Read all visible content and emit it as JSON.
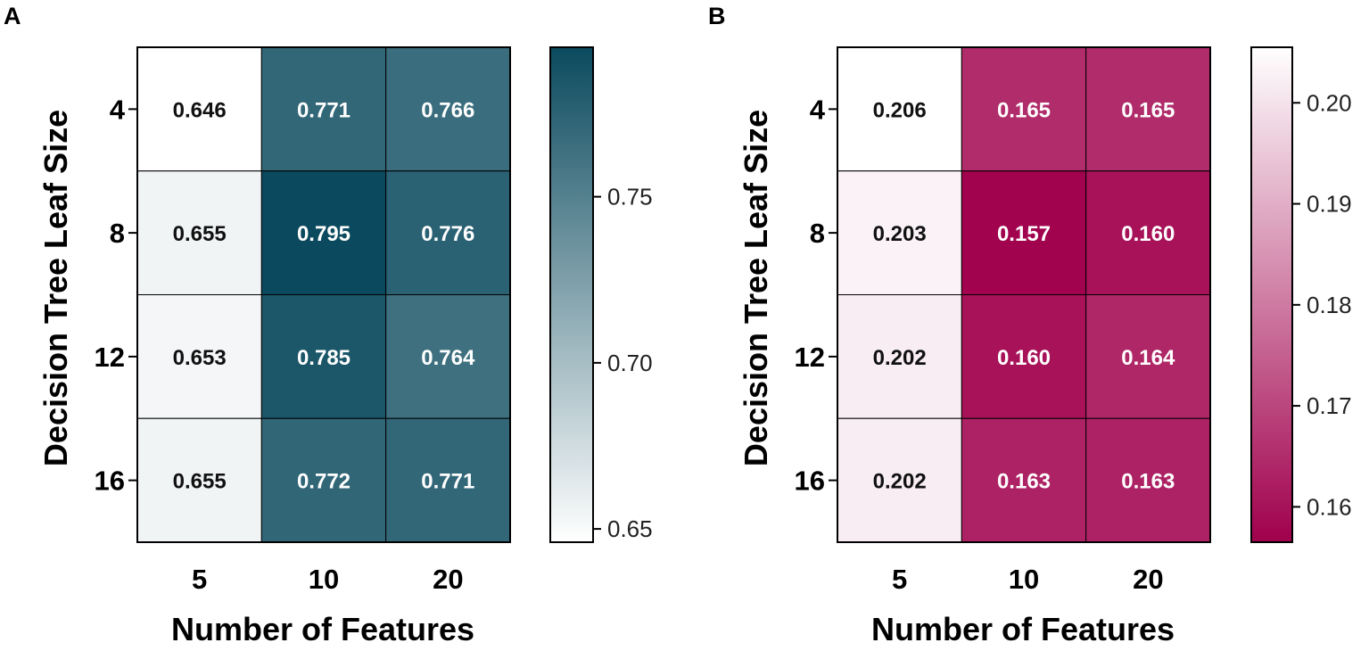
{
  "chart_data": [
    {
      "type": "heatmap",
      "panel": "A",
      "xlabel": "Number of  Features",
      "ylabel": "Decision Tree Leaf Size",
      "x_categories": [
        "5",
        "10",
        "20"
      ],
      "y_categories": [
        "4",
        "8",
        "12",
        "16"
      ],
      "values": [
        [
          0.646,
          0.771,
          0.766
        ],
        [
          0.655,
          0.795,
          0.776
        ],
        [
          0.653,
          0.785,
          0.764
        ],
        [
          0.655,
          0.772,
          0.771
        ]
      ],
      "value_labels": [
        [
          "0.646",
          "0.771",
          "0.766"
        ],
        [
          "0.655",
          "0.795",
          "0.776"
        ],
        [
          "0.653",
          "0.785",
          "0.764"
        ],
        [
          "0.655",
          "0.772",
          "0.771"
        ]
      ],
      "colorbar": {
        "range": [
          0.646,
          0.795
        ],
        "low_color": "#ffffff",
        "high_color": "#0b4a5e",
        "ticks": [
          0.65,
          0.7,
          0.75
        ],
        "tick_labels": [
          "0.65",
          "0.70",
          "0.75"
        ]
      }
    },
    {
      "type": "heatmap",
      "panel": "B",
      "xlabel": "Number of  Features",
      "ylabel": "Decision Tree Leaf Size",
      "x_categories": [
        "5",
        "10",
        "20"
      ],
      "y_categories": [
        "4",
        "8",
        "12",
        "16"
      ],
      "values": [
        [
          0.206,
          0.165,
          0.165
        ],
        [
          0.203,
          0.157,
          0.16
        ],
        [
          0.202,
          0.16,
          0.164
        ],
        [
          0.202,
          0.163,
          0.163
        ]
      ],
      "value_labels": [
        [
          "0.206",
          "0.165",
          "0.165"
        ],
        [
          "0.203",
          "0.157",
          "0.160"
        ],
        [
          "0.202",
          "0.160",
          "0.164"
        ],
        [
          "0.202",
          "0.163",
          "0.163"
        ]
      ],
      "colorbar": {
        "range": [
          0.1565,
          0.2055
        ],
        "low_color": "#a0004c",
        "high_color": "#ffffff",
        "ticks": [
          0.16,
          0.17,
          0.18,
          0.19,
          0.2
        ],
        "tick_labels": [
          "0.16",
          "0.17",
          "0.18",
          "0.19",
          "0.20"
        ]
      }
    }
  ]
}
